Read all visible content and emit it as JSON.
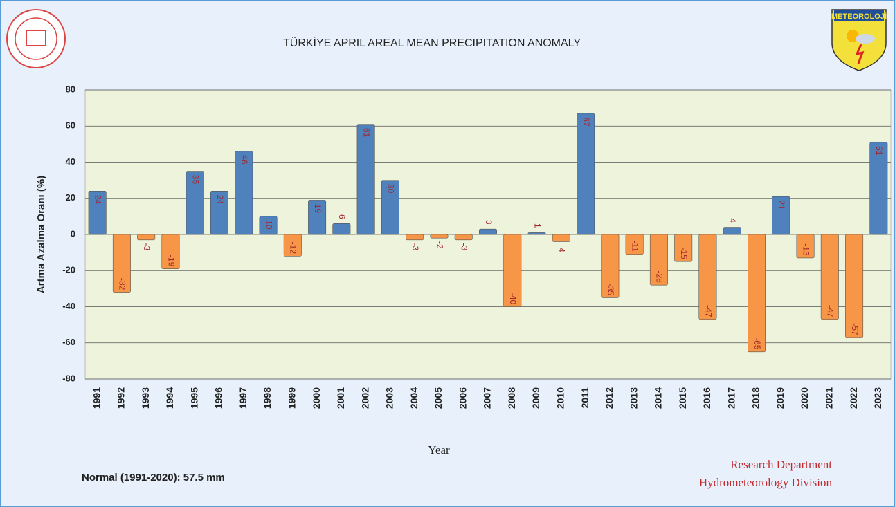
{
  "chart_data": {
    "type": "bar",
    "title": "TÜRKİYE   APRIL  AREAL MEAN PRECIPITATION ANOMALY",
    "y_label": "Artma Azalma Oranı (%)",
    "x_label": "Year",
    "note": "Normal (1991-2020):  57.5 mm",
    "credit": [
      "Research Department",
      "Hydrometeorology Division"
    ],
    "logo_text": "METEOROLOJİ",
    "categories": [
      "1991",
      "1992",
      "1993",
      "1994",
      "1995",
      "1996",
      "1997",
      "1998",
      "1999",
      "2000",
      "2001",
      "2002",
      "2003",
      "2004",
      "2005",
      "2006",
      "2007",
      "2008",
      "2009",
      "2010",
      "2011",
      "2012",
      "2013",
      "2014",
      "2015",
      "2016",
      "2017",
      "2018",
      "2019",
      "2020",
      "2021",
      "2022",
      "2023"
    ],
    "values": [
      24,
      -32,
      -3,
      -19,
      35,
      24,
      46,
      10,
      -12,
      19,
      6,
      61,
      30,
      -3,
      -2,
      -3,
      3,
      -40,
      1,
      -4,
      67,
      -35,
      -11,
      -28,
      -15,
      -47,
      4,
      -65,
      21,
      -13,
      -47,
      -57,
      51
    ],
    "positive_color": "#4f81bd",
    "negative_color": "#f79646",
    "ylim": [
      -80,
      80
    ],
    "yticks": [
      -80,
      -60,
      -40,
      -20,
      0,
      20,
      40,
      60,
      80
    ],
    "grid": true
  }
}
